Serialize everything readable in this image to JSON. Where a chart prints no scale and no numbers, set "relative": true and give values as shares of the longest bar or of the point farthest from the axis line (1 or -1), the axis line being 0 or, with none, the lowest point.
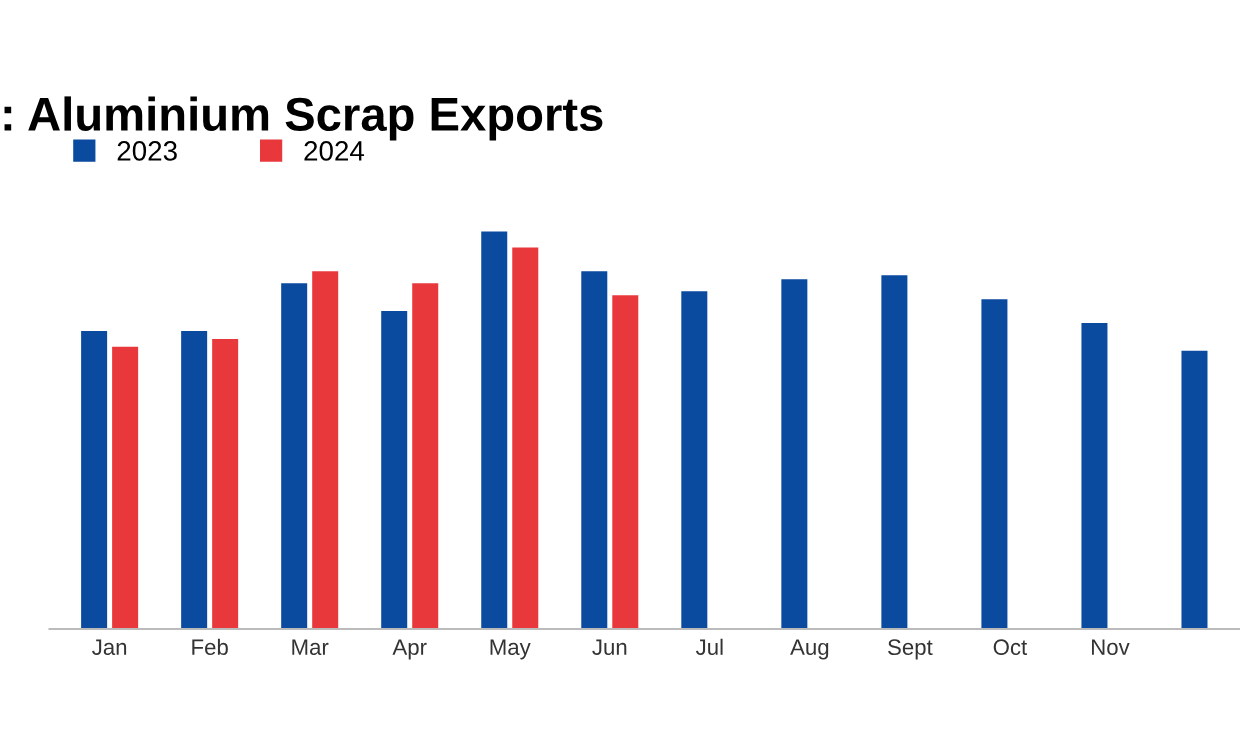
{
  "chart_data": {
    "type": "bar",
    "title": ": Aluminium Scrap Exports",
    "categories": [
      "Jan",
      "Feb",
      "Mar",
      "Apr",
      "May",
      "Jun",
      "Jul",
      "Aug",
      "Sept",
      "Oct",
      "Nov",
      null
    ],
    "series": [
      {
        "name": "2023",
        "color": "#0a4a9f",
        "values": [
          0.75,
          0.75,
          0.87,
          0.8,
          1,
          0.9,
          0.85,
          0.88,
          0.89,
          0.83,
          0.77,
          0.7
        ]
      },
      {
        "name": "2024",
        "color": "#e8383b",
        "values": [
          0.71,
          0.73,
          0.9,
          0.87,
          0.96,
          0.84,
          null,
          null,
          null,
          null,
          null,
          null
        ]
      }
    ],
    "relative": true,
    "legend": "top left",
    "grid": false
  }
}
